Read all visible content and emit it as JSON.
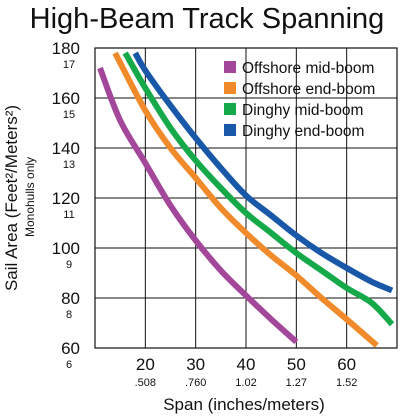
{
  "chart_data": {
    "type": "line",
    "title": "High-Beam Track Spanning",
    "xlabel": "Span (inches/meters)",
    "ylabel": "Sail Area (Feet²/Meters²)",
    "ylabel_note": "Monohulls only",
    "xlim": [
      10,
      70
    ],
    "ylim": [
      60,
      180
    ],
    "grid": true,
    "legend_position": "top-right",
    "x_ticks": [
      {
        "value": 20,
        "label": "20",
        "sublabel": ".508"
      },
      {
        "value": 30,
        "label": "30",
        "sublabel": ".760"
      },
      {
        "value": 40,
        "label": "40",
        "sublabel": "1.02"
      },
      {
        "value": 50,
        "label": "50",
        "sublabel": "1.27"
      },
      {
        "value": 60,
        "label": "60",
        "sublabel": "1.52"
      }
    ],
    "y_ticks": [
      {
        "value": 60,
        "label": "60",
        "sublabel": "6"
      },
      {
        "value": 80,
        "label": "80",
        "sublabel": "8"
      },
      {
        "value": 100,
        "label": "100",
        "sublabel": "9"
      },
      {
        "value": 120,
        "label": "120",
        "sublabel": "11"
      },
      {
        "value": 140,
        "label": "140",
        "sublabel": "13"
      },
      {
        "value": 160,
        "label": "160",
        "sublabel": "15"
      },
      {
        "value": 180,
        "label": "180",
        "sublabel": "17"
      }
    ],
    "series": [
      {
        "name": "Offshore mid-boom",
        "color": "#a3479a",
        "points": [
          [
            11,
            172
          ],
          [
            15,
            151
          ],
          [
            20,
            134
          ],
          [
            25,
            117
          ],
          [
            30,
            103
          ],
          [
            35,
            91
          ],
          [
            40,
            81
          ],
          [
            45,
            71.5
          ],
          [
            50,
            62.5
          ]
        ]
      },
      {
        "name": "Offshore end-boom",
        "color": "#f18a2a",
        "points": [
          [
            14,
            178
          ],
          [
            20,
            155
          ],
          [
            25,
            140
          ],
          [
            30,
            128
          ],
          [
            35,
            116
          ],
          [
            40,
            106
          ],
          [
            45,
            97
          ],
          [
            50,
            89
          ],
          [
            55,
            80
          ],
          [
            60,
            71.5
          ],
          [
            66,
            61
          ]
        ]
      },
      {
        "name": "Dinghy mid-boom",
        "color": "#16a94a",
        "points": [
          [
            16,
            178
          ],
          [
            20,
            164
          ],
          [
            25,
            148
          ],
          [
            30,
            135
          ],
          [
            35,
            124
          ],
          [
            40,
            114
          ],
          [
            45,
            106
          ],
          [
            50,
            98
          ],
          [
            55,
            91
          ],
          [
            60,
            84
          ],
          [
            65,
            78
          ],
          [
            69,
            69.5
          ]
        ]
      },
      {
        "name": "Dinghy end-boom",
        "color": "#1957a8",
        "points": [
          [
            18,
            178
          ],
          [
            20,
            171
          ],
          [
            25,
            157
          ],
          [
            30,
            144
          ],
          [
            35,
            132
          ],
          [
            40,
            121
          ],
          [
            45,
            113
          ],
          [
            50,
            105
          ],
          [
            55,
            98
          ],
          [
            60,
            92
          ],
          [
            65,
            86.5
          ],
          [
            69,
            83
          ]
        ]
      }
    ]
  }
}
